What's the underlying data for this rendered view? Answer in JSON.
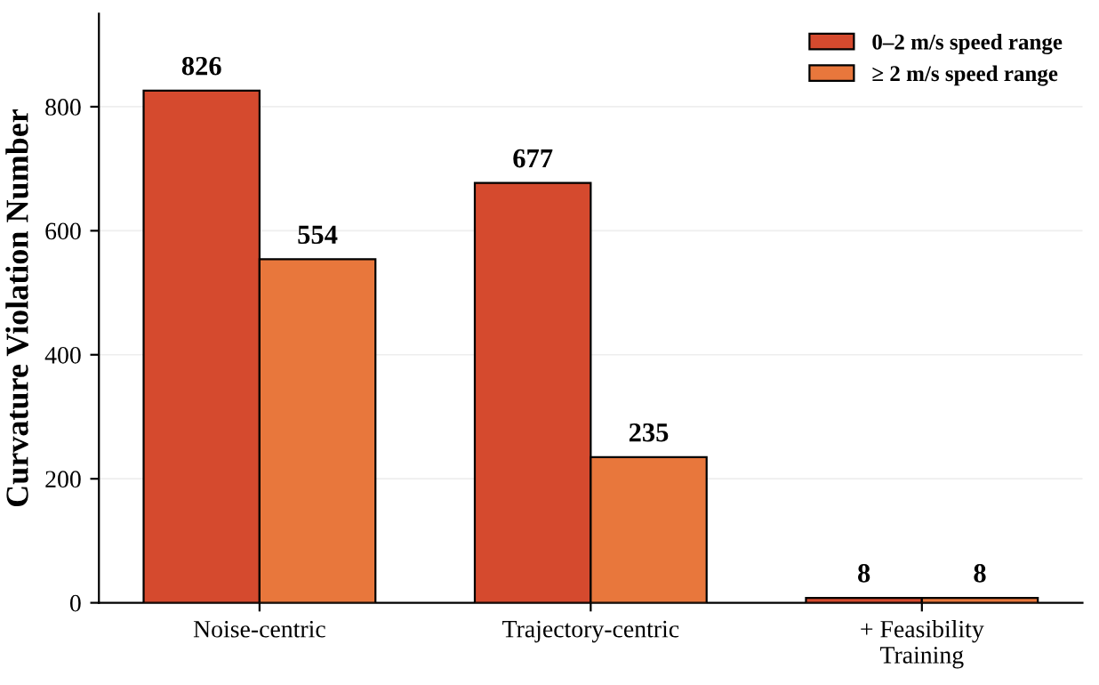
{
  "chart_data": {
    "type": "bar",
    "ylabel": "Curvature Violation Number",
    "categories": [
      "Noise-centric",
      "Trajectory-centric",
      "+ Feasibility\nTraining"
    ],
    "series": [
      {
        "name": "0–2 m/s speed range",
        "color": "#d54a2e",
        "values": [
          826,
          677,
          8
        ]
      },
      {
        "name": "≥ 2 m/s speed range",
        "color": "#e8773c",
        "values": [
          554,
          235,
          8
        ]
      }
    ],
    "ylim": [
      0,
      950
    ],
    "yticks": [
      0,
      200,
      400,
      600,
      800
    ],
    "grid": "y",
    "legend": "top right",
    "data_labels": true
  }
}
